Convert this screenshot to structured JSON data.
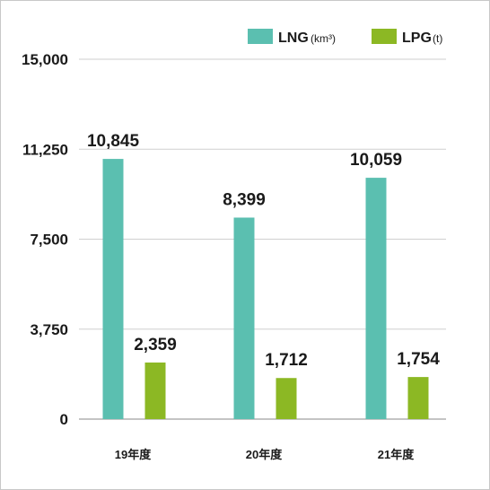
{
  "chart_data": {
    "type": "bar",
    "categories": [
      "19年度",
      "20年度",
      "21年度"
    ],
    "series": [
      {
        "name": "LNG",
        "unit": "(km³)",
        "color": "#5bbfb0",
        "values": [
          10845,
          8399,
          10059
        ],
        "labels": [
          "10,845",
          "8,399",
          "10,059"
        ]
      },
      {
        "name": "LPG",
        "unit": "(t)",
        "color": "#8cb824",
        "values": [
          2359,
          1712,
          1754
        ],
        "labels": [
          "2,359",
          "1,712",
          "1,754"
        ]
      }
    ],
    "yticks": [
      0,
      3750,
      7500,
      11250,
      15000
    ],
    "ytick_labels": [
      "0",
      "3,750",
      "7,500",
      "11,250",
      "15,000"
    ],
    "ylim": [
      0,
      15000
    ],
    "grid": true,
    "legend_position": "top-right"
  }
}
